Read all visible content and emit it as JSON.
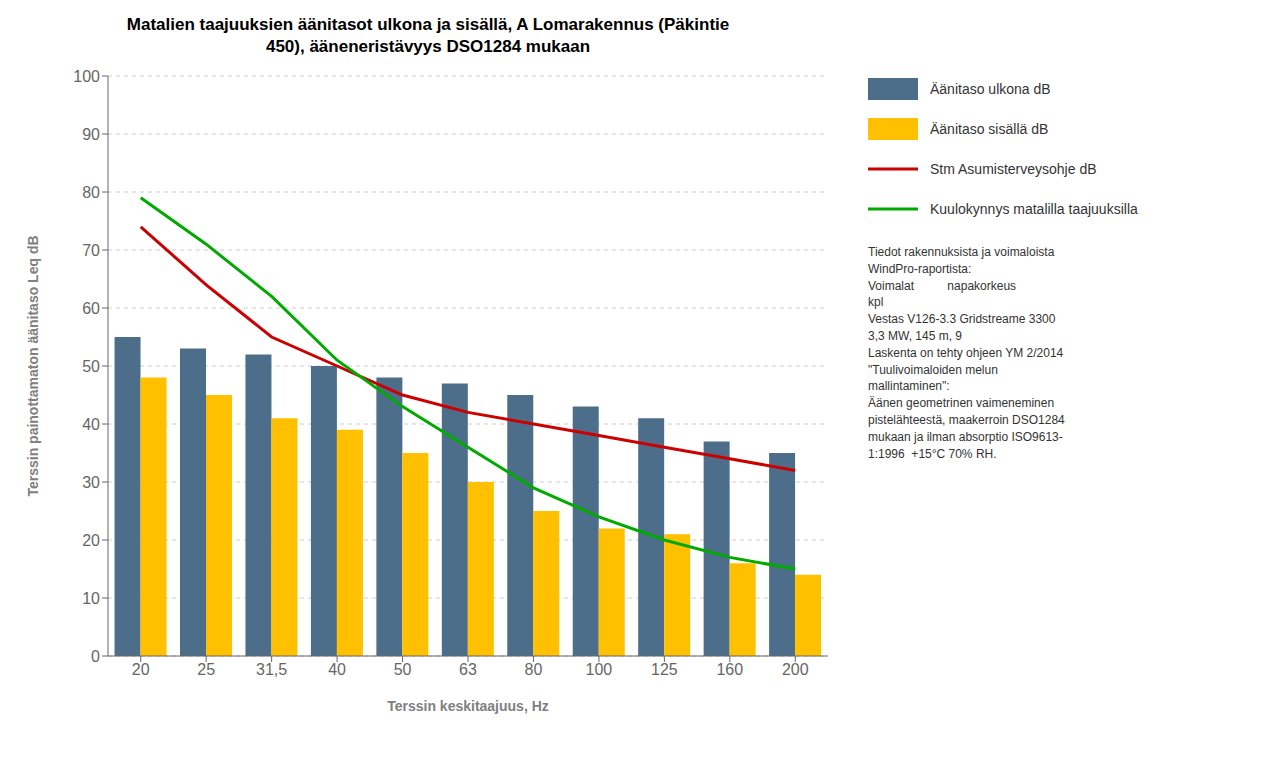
{
  "chart_data": {
    "type": "bar",
    "title": "Matalien taajuuksien äänitasot ulkona ja sisällä, A Lomarakennus (Päkintie\n450), ääneneristävyys DSO1284 mukaan",
    "xlabel": "Terssin keskitaajuus, Hz",
    "ylabel": "Terssin painottamaton äänitaso Leq dB",
    "categories": [
      "20",
      "25",
      "31,5",
      "40",
      "50",
      "63",
      "80",
      "100",
      "125",
      "160",
      "200"
    ],
    "series": [
      {
        "name": "Äänitaso ulkona dB",
        "type": "bar",
        "color": "#4d6e8a",
        "values": [
          55,
          53,
          52,
          50,
          48,
          47,
          45,
          43,
          41,
          37,
          35
        ]
      },
      {
        "name": "Äänitaso sisällä dB",
        "type": "bar",
        "color": "#ffc000",
        "values": [
          48,
          45,
          41,
          39,
          35,
          30,
          25,
          22,
          21,
          16,
          14
        ]
      },
      {
        "name": "Stm Asumisterveysohje dB",
        "type": "line",
        "color": "#cc0000",
        "values": [
          74,
          64,
          55,
          50,
          45,
          42,
          40,
          38,
          36,
          34,
          32
        ]
      },
      {
        "name": "Kuulokynnys matalilla taajuuksilla",
        "type": "line",
        "color": "#00aa00",
        "values": [
          79,
          71,
          62,
          51,
          43,
          36,
          29,
          24,
          20,
          17,
          15
        ]
      }
    ],
    "ylim": [
      0,
      100
    ],
    "yticks": [
      0,
      10,
      20,
      30,
      40,
      50,
      60,
      70,
      80,
      90,
      100
    ],
    "grid": true,
    "legend": "right",
    "annotation": "Tiedot rakennuksista ja voimaloista\nWindPro-raportista:\nVoimalat          napakorkeus\nkpl\nVestas V126-3.3 Gridstreame 3300\n3,3 MW, 145 m, 9\nLaskenta on tehty ohjeen YM 2/2014\n\"Tuulivoimaloiden melun\nmallintaminen\":\nÄänen geometrinen vaimeneminen\npistelähteestä, maakerroin DSO1284\nmukaan ja ilman absorptio ISO9613-\n1:1996  +15°C 70% RH."
  }
}
